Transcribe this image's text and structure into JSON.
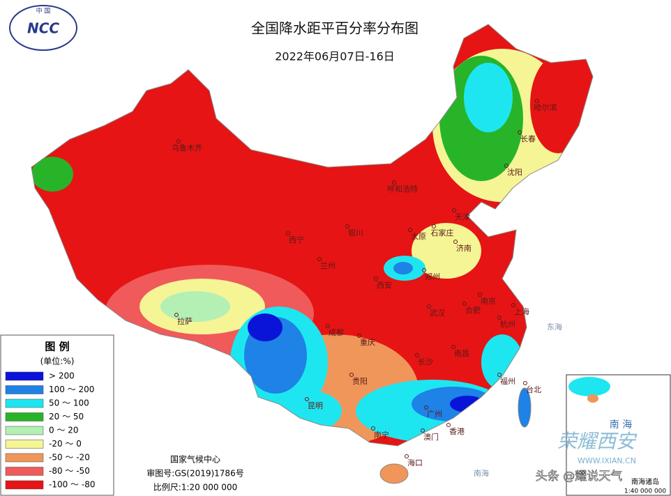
{
  "header": {
    "title": "全国降水距平百分率分布图",
    "date": "2022年06月07日-16日",
    "logo_top": "中 国",
    "logo": "NCC"
  },
  "legend": {
    "title": "图 例",
    "unit": "(单位:%)",
    "items": [
      {
        "label": "> 200",
        "color": "#0a14d8"
      },
      {
        "label": "100 ～ 200",
        "color": "#1e82e6"
      },
      {
        "label": "50 ～ 100",
        "color": "#1ee6f0"
      },
      {
        "label": "20 ～ 50",
        "color": "#28b428"
      },
      {
        "label": "0 ～ 20",
        "color": "#b4f0b4"
      },
      {
        "label": "-20 ～ 0",
        "color": "#f5f596"
      },
      {
        "label": "-50 ～ -20",
        "color": "#f0965a"
      },
      {
        "label": "-80 ～ -50",
        "color": "#f05a5a"
      },
      {
        "label": "-100 ～ -80",
        "color": "#e61414"
      }
    ]
  },
  "footer": {
    "org": "国家气候中心",
    "approval": "审图号:GS(2019)1786号",
    "scale": "比例尺:1:20 000 000"
  },
  "cities": [
    "乌鲁木齐",
    "哈尔滨",
    "长春",
    "沈阳",
    "呼和浩特",
    "天津",
    "石家庄",
    "太原",
    "济南",
    "银川",
    "西宁",
    "兰州",
    "西安",
    "郑州",
    "合肥",
    "南京",
    "上海",
    "杭州",
    "武汉",
    "拉萨",
    "成都",
    "重庆",
    "长沙",
    "南昌",
    "福州",
    "台北",
    "贵阳",
    "昆明",
    "广州",
    "南宁",
    "香港",
    "澳门",
    "海口"
  ],
  "seas": [
    "东海",
    "南海"
  ],
  "inset": {
    "sea": "南 海",
    "islands": "南海诸岛",
    "scale": "1:40 000 000"
  },
  "watermark": {
    "name": "荣耀西安",
    "site": "WWW.IXIAN.CN",
    "account": "头条 @耀说天气"
  }
}
